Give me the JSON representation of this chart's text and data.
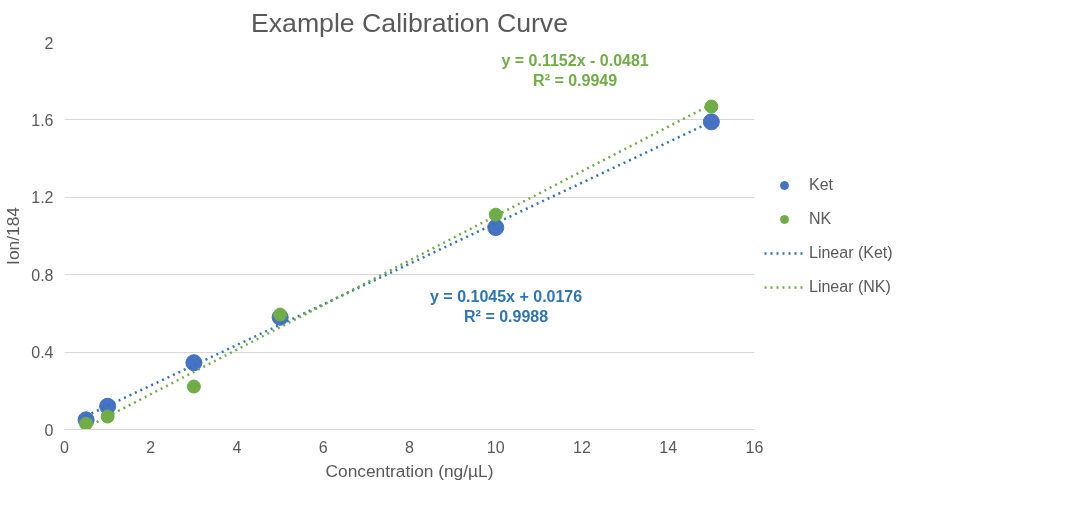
{
  "chart_data": {
    "type": "scatter",
    "title": "Example Calibration Curve",
    "xlabel": "Concentration (ng/µL)",
    "ylabel": "Ion/184",
    "series": [
      {
        "name": "Ket",
        "color": "#4472c4",
        "marker": "circle",
        "x": [
          0.5,
          1,
          3,
          5,
          10,
          15
        ],
        "values": [
          0.05,
          0.12,
          0.345,
          0.58,
          1.044,
          1.59
        ]
      },
      {
        "name": "NK",
        "color": "#70ad47",
        "marker": "circle",
        "x": [
          0.5,
          1,
          3,
          5,
          10,
          15
        ],
        "values": [
          0.03,
          0.067,
          0.222,
          0.594,
          1.11,
          1.669
        ]
      },
      {
        "name": "Linear (Ket)",
        "type": "line",
        "line_style": "dotted",
        "color": "#2e75b6",
        "x": [
          0.5,
          15
        ],
        "values": [
          0.07,
          1.59
        ]
      },
      {
        "name": "Linear (NK)",
        "type": "line",
        "line_style": "dotted",
        "color": "#70ad47",
        "x": [
          0.5,
          15
        ],
        "values": [
          0.01,
          1.68
        ]
      }
    ],
    "annotations": [
      "y = 0.1045x + 0.0176\nR² = 0.9988",
      "y = 0.1152x - 0.0481\nR² = 0.9949"
    ],
    "xlim": [
      0,
      16
    ],
    "xticks": [
      0,
      2,
      4,
      6,
      8,
      10,
      12,
      14,
      16
    ],
    "ylim": [
      0,
      2
    ],
    "yticks": [
      0,
      0.4,
      0.8,
      1.2,
      1.6,
      2
    ],
    "grid": "y",
    "legend": "right"
  }
}
